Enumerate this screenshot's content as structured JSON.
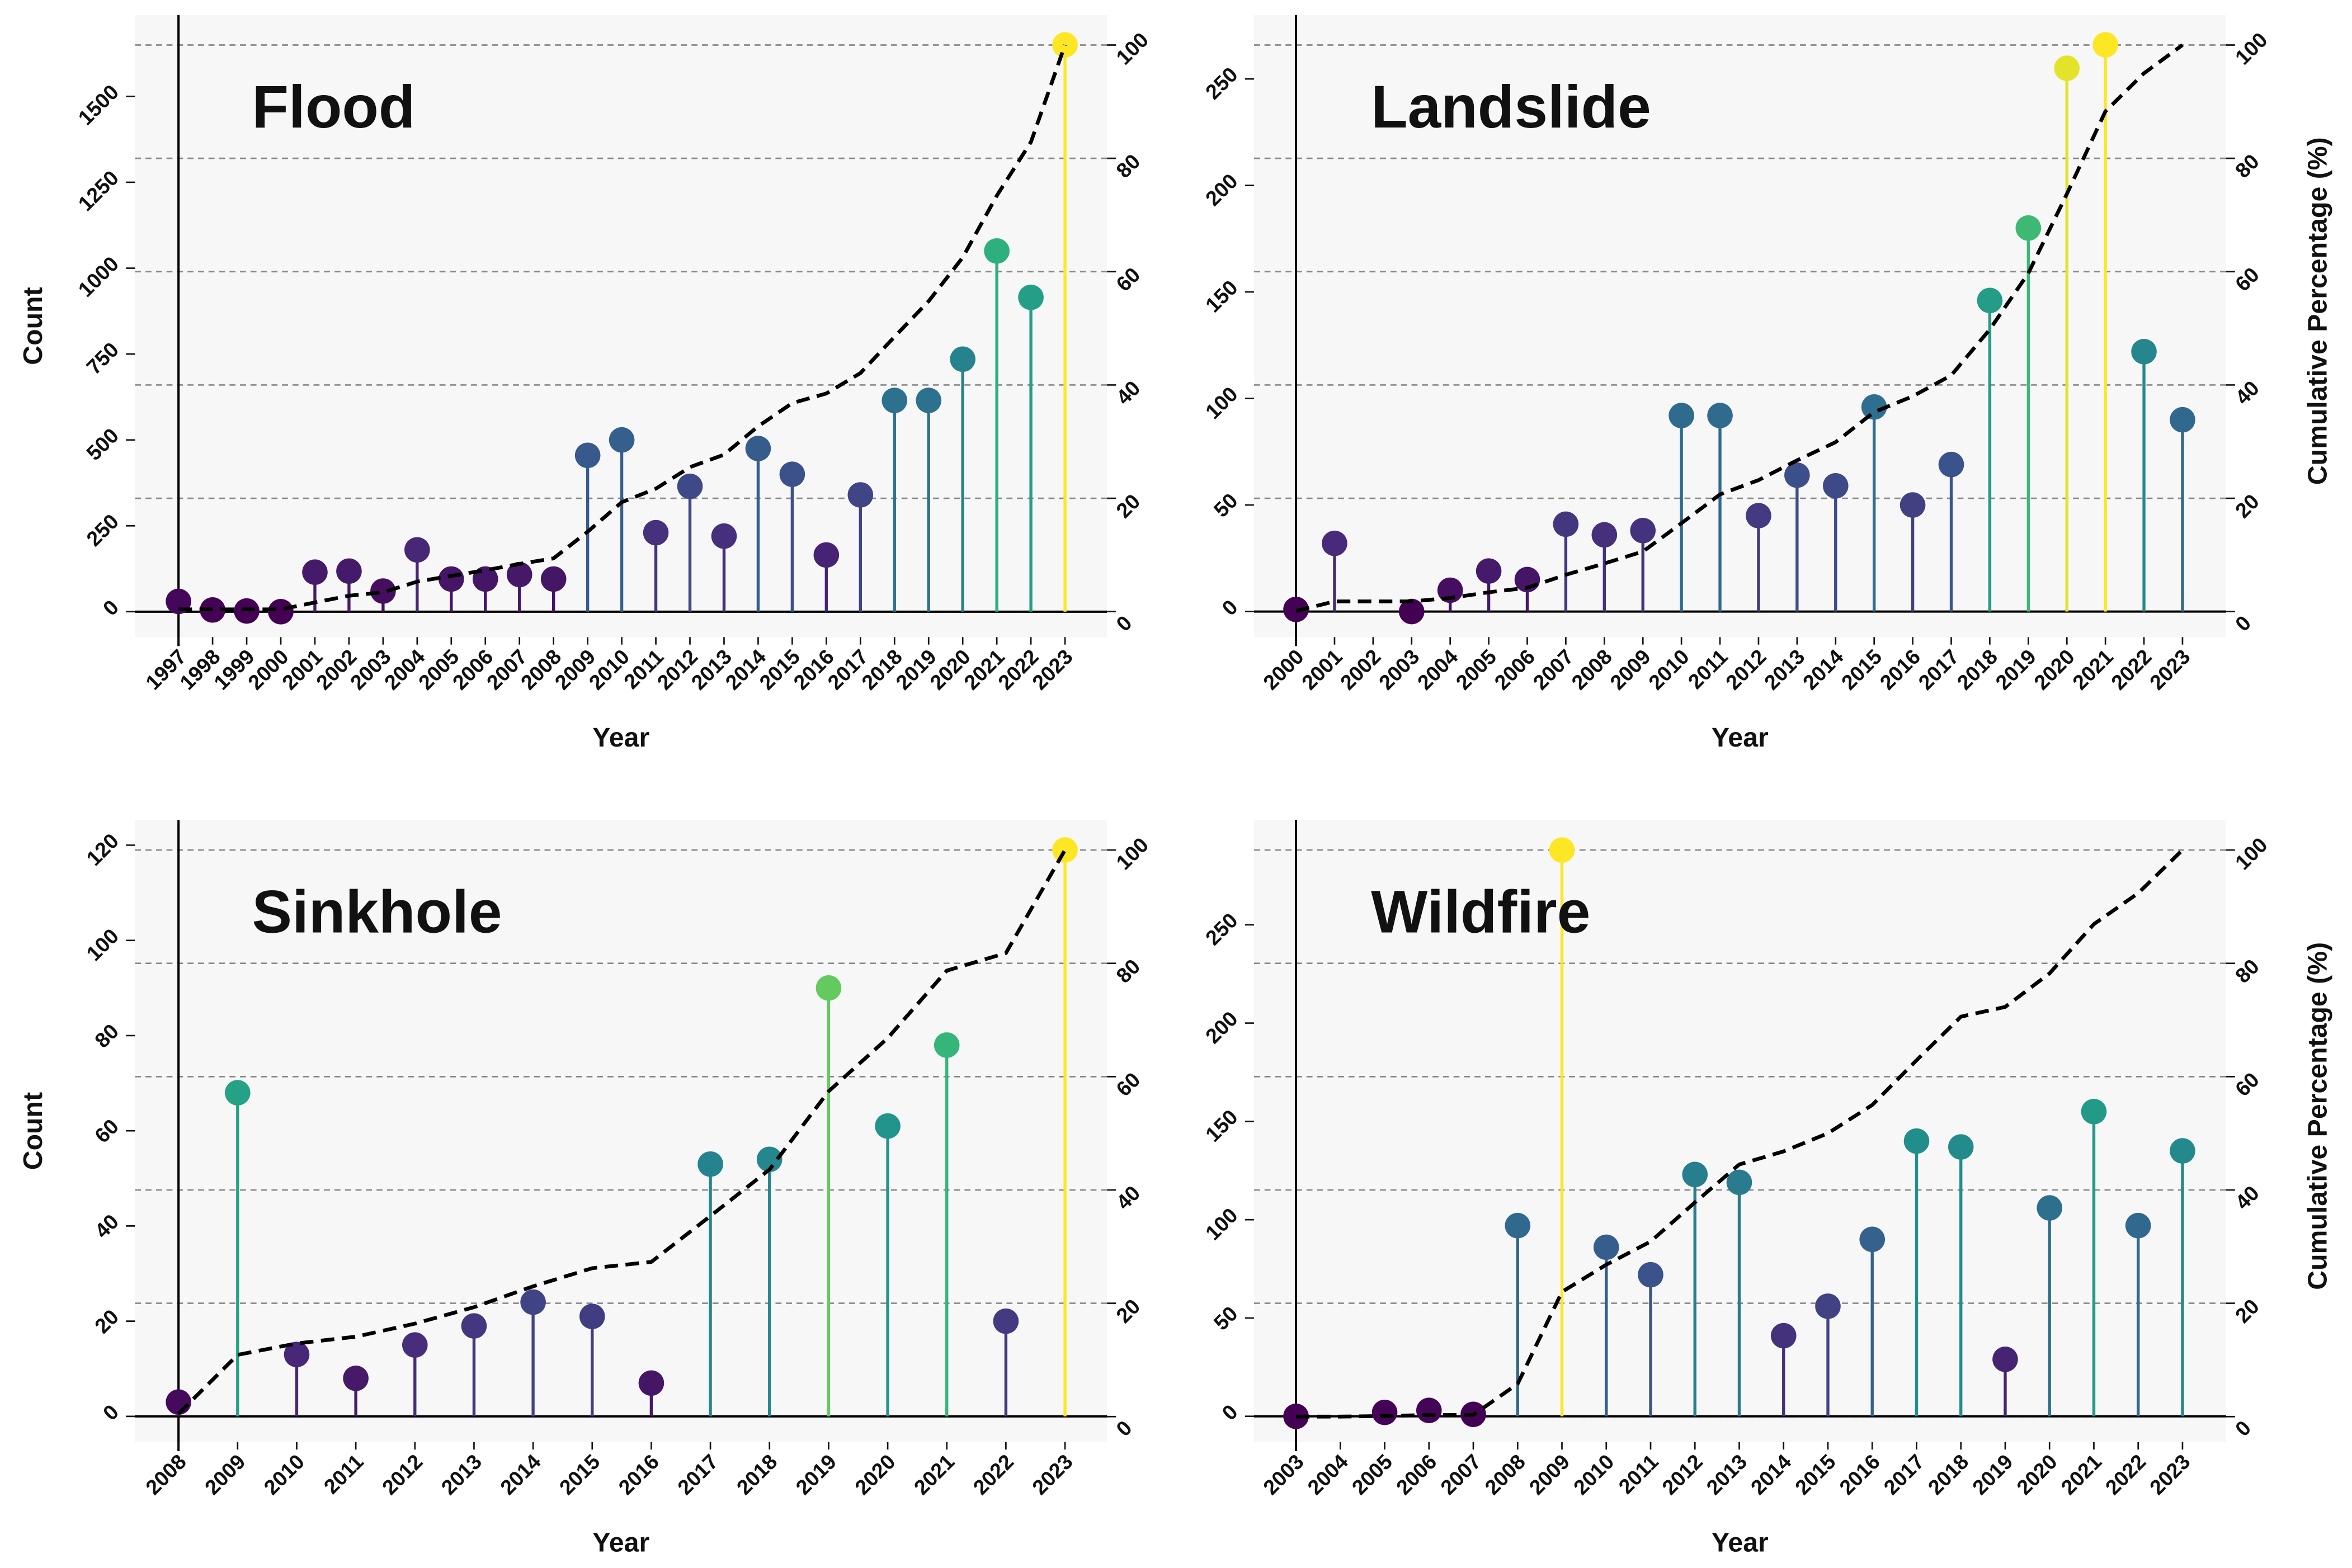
{
  "chart_data": [
    {
      "type": "lollipop",
      "title": "Flood",
      "xlabel": "Year",
      "ylabel": "Count",
      "categories": [
        "1997",
        "1998",
        "1999",
        "2000",
        "2001",
        "2002",
        "2003",
        "2004",
        "2005",
        "2006",
        "2007",
        "2008",
        "2009",
        "2010",
        "2011",
        "2012",
        "2013",
        "2014",
        "2015",
        "2016",
        "2017",
        "2018",
        "2019",
        "2020",
        "2021",
        "2022",
        "2023"
      ],
      "values": [
        30,
        5,
        2,
        0,
        115,
        118,
        60,
        180,
        95,
        95,
        108,
        95,
        455,
        500,
        230,
        365,
        220,
        475,
        400,
        165,
        340,
        615,
        615,
        735,
        1050,
        915,
        1650
      ],
      "colormap": "viridis",
      "line": {
        "values": [
          0.4,
          0.4,
          0.4,
          0.4,
          1.6,
          2.8,
          3.4,
          5.3,
          6.3,
          7.3,
          8.4,
          9.4,
          14.1,
          19.3,
          21.7,
          25.5,
          27.7,
          32.7,
          36.8,
          38.5,
          42.1,
          48.5,
          54.8,
          62.5,
          73.4,
          82.9,
          100
        ],
        "color": "#000000",
        "axis": "y2",
        "style": "dashed"
      },
      "ylim": [
        -74,
        1737
      ],
      "yticks": [
        0,
        250,
        500,
        750,
        1000,
        1250,
        1500
      ],
      "y2lim": [
        -4.5,
        105.3
      ],
      "y2ticks": [
        0,
        20,
        40,
        60,
        80,
        100
      ],
      "grid": true
    },
    {
      "type": "lollipop",
      "title": "Landslide",
      "xlabel": "Year",
      "y2label": "Cumulative Percentage (%)",
      "categories": [
        "2000",
        "2001",
        "2002",
        "2003",
        "2004",
        "2005",
        "2006",
        "2007",
        "2008",
        "2009",
        "2010",
        "2011",
        "2012",
        "2013",
        "2014",
        "2015",
        "2016",
        "2017",
        "2018",
        "2019",
        "2020",
        "2021",
        "2022",
        "2023"
      ],
      "values": [
        1,
        32,
        null,
        0,
        10,
        19,
        15,
        41,
        36,
        38,
        92,
        92,
        45,
        64,
        59,
        96,
        50,
        69,
        146,
        180,
        255,
        266,
        122,
        90
      ],
      "colormap": "viridis",
      "line": {
        "values": [
          0.1,
          1.8,
          1.8,
          1.8,
          2.4,
          3.4,
          4.2,
          6.5,
          8.5,
          10.6,
          15.6,
          20.7,
          23.2,
          26.7,
          29.9,
          35.2,
          38,
          41.7,
          49.8,
          59.7,
          73.7,
          88.3,
          95,
          100
        ],
        "color": "#000000",
        "axis": "y2",
        "style": "dashed"
      },
      "ylim": [
        -12,
        280
      ],
      "yticks": [
        0,
        50,
        100,
        150,
        200,
        250
      ],
      "y2lim": [
        -4.5,
        105.3
      ],
      "y2ticks": [
        0,
        20,
        40,
        60,
        80,
        100
      ],
      "grid": true
    },
    {
      "type": "lollipop",
      "title": "Sinkhole",
      "xlabel": "Year",
      "ylabel": "Count",
      "categories": [
        "2008",
        "2009",
        "2010",
        "2011",
        "2012",
        "2013",
        "2014",
        "2015",
        "2016",
        "2017",
        "2018",
        "2019",
        "2020",
        "2021",
        "2022",
        "2023"
      ],
      "values": [
        3,
        68,
        13,
        8,
        15,
        19,
        24,
        21,
        7,
        53,
        54,
        90,
        61,
        78,
        20,
        119
      ],
      "colormap": "viridis",
      "line": {
        "values": [
          0.5,
          10.9,
          12.9,
          14.1,
          16.4,
          19.3,
          23,
          26.2,
          27.3,
          35.4,
          43.6,
          57.4,
          66.8,
          78.7,
          81.8,
          100
        ],
        "color": "#000000",
        "axis": "y2",
        "style": "dashed"
      },
      "ylim": [
        -5.4,
        125.3
      ],
      "yticks": [
        0,
        20,
        40,
        60,
        80,
        100,
        120
      ],
      "y2lim": [
        -4.5,
        105.3
      ],
      "y2ticks": [
        0,
        20,
        40,
        60,
        80,
        100
      ],
      "grid": true
    },
    {
      "type": "lollipop",
      "title": "Wildfire",
      "xlabel": "Year",
      "y2label": "Cumulative Percentage (%)",
      "categories": [
        "2003",
        "2004",
        "2005",
        "2006",
        "2007",
        "2008",
        "2009",
        "2010",
        "2011",
        "2012",
        "2013",
        "2014",
        "2015",
        "2016",
        "2017",
        "2018",
        "2019",
        "2020",
        "2021",
        "2022",
        "2023"
      ],
      "values": [
        0,
        null,
        2,
        3,
        1,
        97,
        288,
        86,
        72,
        123,
        119,
        41,
        56,
        90,
        140,
        137,
        29,
        106,
        155,
        97,
        135
      ],
      "colormap": "viridis",
      "line": {
        "values": [
          0,
          0,
          0.1,
          0.3,
          0.3,
          5.8,
          22,
          26.8,
          30.9,
          37.8,
          44.5,
          46.8,
          50,
          55,
          62.9,
          70.6,
          72.3,
          78.2,
          86.9,
          92.4,
          100
        ],
        "color": "#000000",
        "axis": "y2",
        "style": "dashed"
      },
      "ylim": [
        -13.1,
        303.3
      ],
      "yticks": [
        0,
        50,
        100,
        150,
        200,
        250
      ],
      "y2lim": [
        -4.5,
        105.3
      ],
      "y2ticks": [
        0,
        20,
        40,
        60,
        80,
        100
      ],
      "grid": true
    }
  ]
}
